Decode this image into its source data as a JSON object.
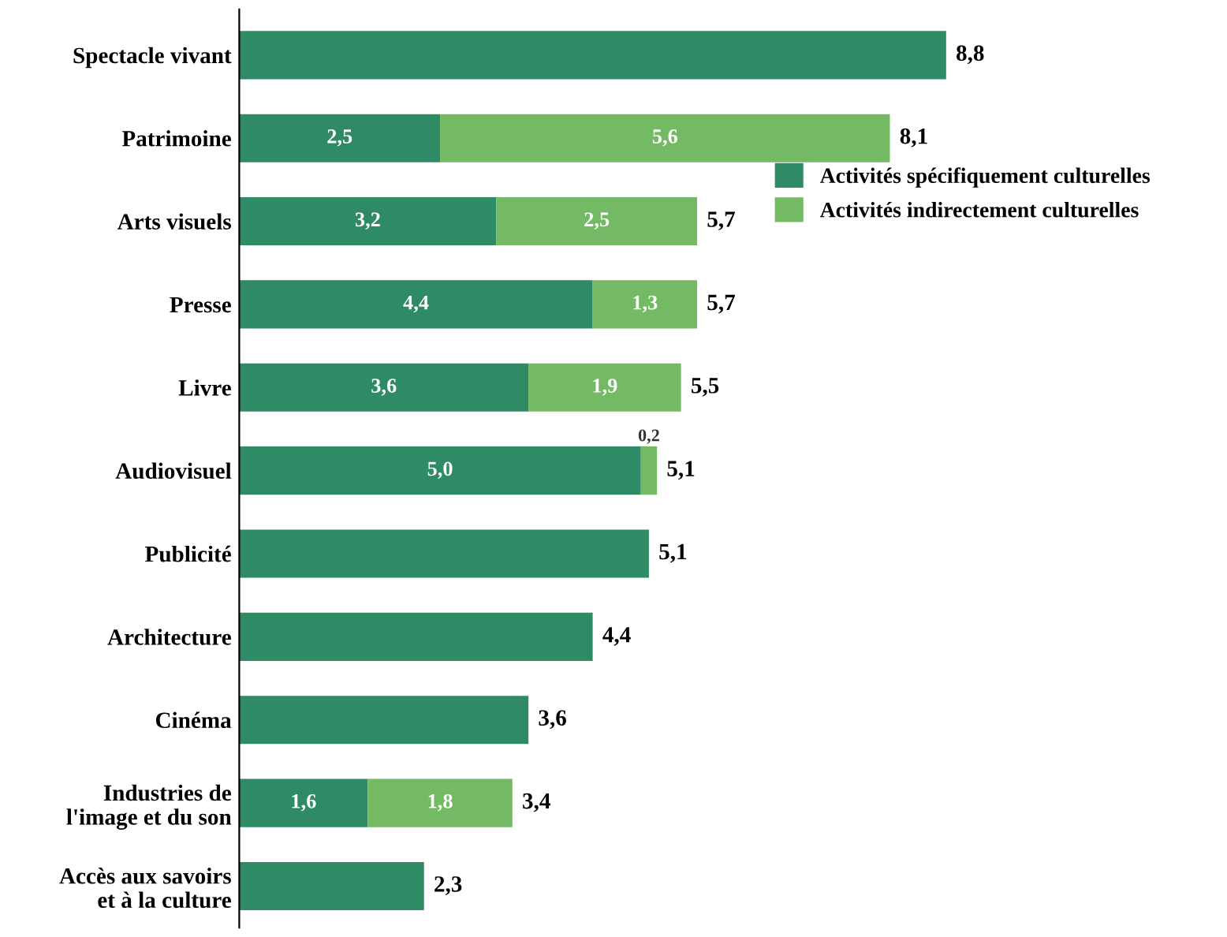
{
  "chart_data": {
    "type": "bar",
    "orientation": "horizontal",
    "stacked": true,
    "categories": [
      "Spectacle vivant",
      "Patrimoine",
      "Arts visuels",
      "Presse",
      "Livre",
      "Audiovisuel",
      "Publicité",
      "Architecture",
      "Cinéma",
      "Industries de\nl'image et du son",
      "Accès aux savoirs\net à la culture"
    ],
    "series": [
      {
        "name": "Activités spécifiquement culturelles",
        "color": "#2e8b66",
        "values": [
          8.8,
          2.5,
          3.2,
          4.4,
          3.6,
          5.0,
          5.1,
          4.4,
          3.6,
          1.6,
          2.3
        ],
        "value_labels": [
          null,
          "2,5",
          "3,2",
          "4,4",
          "3,6",
          "5,0",
          null,
          null,
          null,
          "1,6",
          null
        ]
      },
      {
        "name": "Activités indirectement culturelles",
        "color": "#74b964",
        "values": [
          null,
          5.6,
          2.5,
          1.3,
          1.9,
          0.2,
          null,
          null,
          null,
          1.8,
          null
        ],
        "value_labels": [
          null,
          "5,6",
          "2,5",
          "1,3",
          "1,9",
          "0,2",
          null,
          null,
          null,
          "1,8",
          null
        ]
      }
    ],
    "totals": [
      "8,8",
      "8,1",
      "5,7",
      "5,7",
      "5,5",
      "5,1",
      "5,1",
      "4,4",
      "3,6",
      "3,4",
      "2,3"
    ],
    "legend": "right",
    "grid": false
  }
}
